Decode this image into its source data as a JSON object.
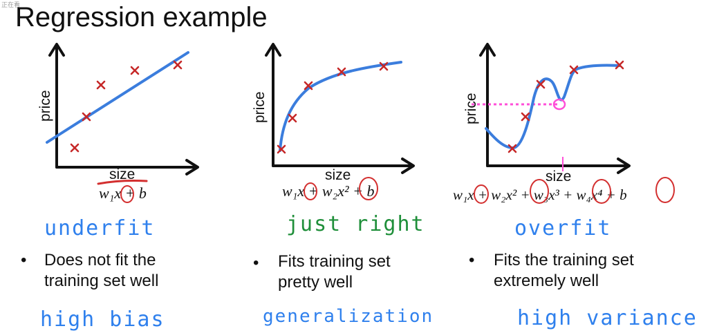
{
  "title": "Regression example",
  "corner_mark": "正在看",
  "colors": {
    "data_point": "#c62828",
    "fit_curve": "#3b7ddd",
    "underfit_note": "#2f80ed",
    "just_right_note": "#1f8f3a",
    "overfit_note": "#2f80ed",
    "circle_annotation": "#d32f2f",
    "dotted_line": "#ff4fd8"
  },
  "panels": [
    {
      "x_label": "size",
      "y_label": "price",
      "formula": "w₁x + b",
      "note": "underfit",
      "bullets": [
        "Does not fit the",
        "training set well"
      ],
      "bottom_note": "high bias"
    },
    {
      "x_label": "size",
      "y_label": "price",
      "formula": "w₁x + w₂x² + b",
      "note": "just right",
      "bullets": [
        "Fits training set",
        "pretty well"
      ],
      "bottom_note": "generalization"
    },
    {
      "x_label": "size",
      "y_label": "price",
      "formula": "w₁x + w₂x² + w₃x³ + w₄x⁴ + b",
      "note": "overfit",
      "bullets": [
        "Fits the training set",
        "extremely well"
      ],
      "bottom_note": "high variance"
    }
  ]
}
